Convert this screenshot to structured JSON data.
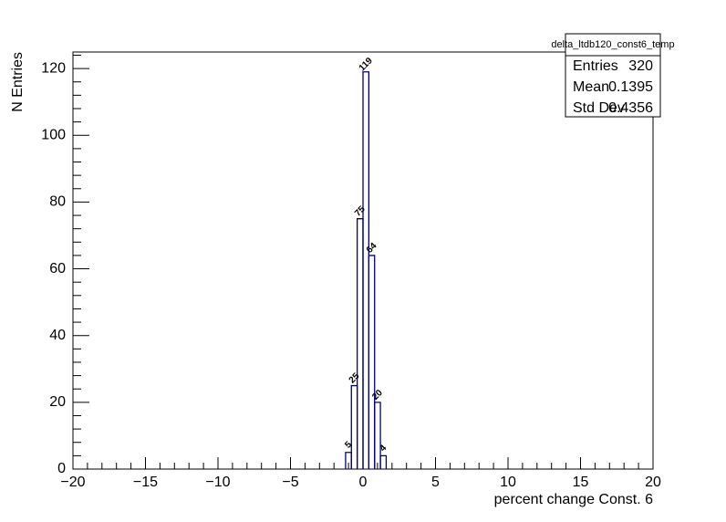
{
  "chart_data": {
    "type": "histogram",
    "bins": [
      -1.2,
      -0.8,
      -0.4,
      0,
      0.4,
      0.8,
      1.2,
      1.6
    ],
    "values": [
      5,
      25,
      75,
      119,
      64,
      20,
      4
    ],
    "color": "#000080",
    "xlim": [
      -20,
      20
    ],
    "ylim": [
      0,
      124.95
    ],
    "xticks": [
      {
        "value": -20,
        "label": "−20"
      },
      {
        "value": -15,
        "label": "−15"
      },
      {
        "value": -10,
        "label": "−10"
      },
      {
        "value": -5,
        "label": "−5"
      },
      0,
      5,
      10,
      15,
      20
    ],
    "yticks": [
      0,
      20,
      40,
      60,
      80,
      100,
      120
    ],
    "xlabel": "percent change Const. 6",
    "ylabel": "N Entries",
    "stats": {
      "title": "delta_ltdb120_const6_temp",
      "rows": [
        {
          "label": "Entries",
          "value": 320
        },
        {
          "label": "Mean",
          "value": 0.1395
        },
        {
          "label": "Std Dev",
          "value": 0.4356
        }
      ]
    }
  }
}
